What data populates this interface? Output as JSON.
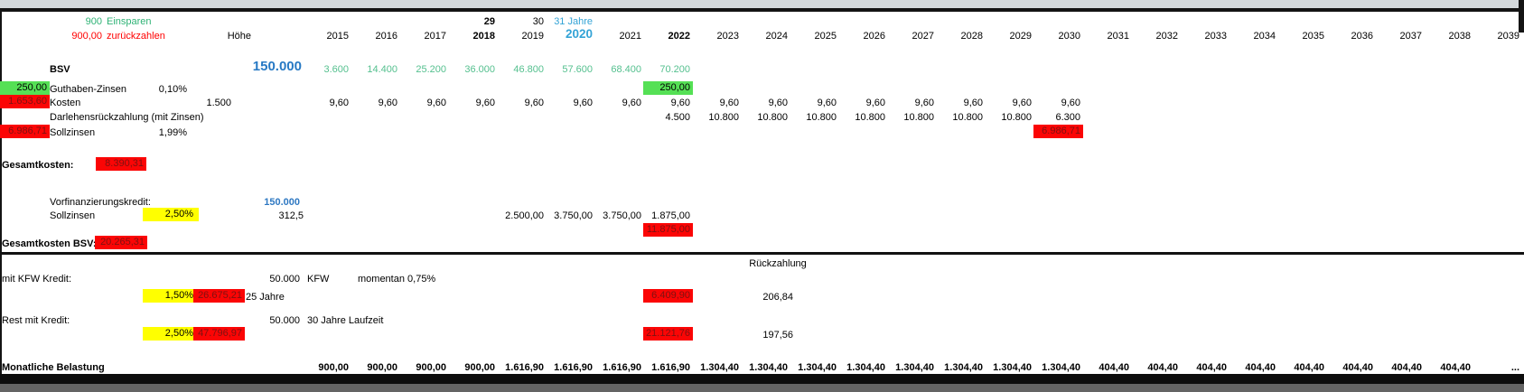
{
  "top": {
    "einsparen_value": "900",
    "einsparen_label": "Einsparen",
    "zurueck_value": "900,00",
    "zurueck_label": "zurückzahlen",
    "hoehe_header": "Höhe",
    "marks": {
      "2018": "29",
      "2019": "30",
      "2020": "31 Jahre"
    },
    "mark_styles": {
      "2018": "b",
      "2020": "blu"
    },
    "years": [
      "2015",
      "2016",
      "2017",
      "2018",
      "2019",
      "2020",
      "2021",
      "2022",
      "2023",
      "2024",
      "2025",
      "2026",
      "2027",
      "2028",
      "2029",
      "2030",
      "2031",
      "2032",
      "2033",
      "2034",
      "2035",
      "2036",
      "2037",
      "2038",
      "2039"
    ],
    "year_styles": {
      "2018": "b",
      "2020": "y2020",
      "2022": "b"
    }
  },
  "rows": {
    "bsv": {
      "label": "BSV",
      "hoehe": "150.000",
      "values": {
        "2015": "3.600",
        "2016": "14.400",
        "2017": "25.200",
        "2018": "36.000",
        "2019": "46.800",
        "2020": "57.600",
        "2021": "68.400",
        "2022": "70.200"
      }
    },
    "guthaben": {
      "left": "250,00",
      "label": "Guthaben-Zinsen",
      "pct": "0,10%",
      "cells": {
        "2022": "250,00"
      }
    },
    "kosten": {
      "left": "1.653,60",
      "label": "Kosten",
      "base": "1.500",
      "values": {
        "2015": "9,60",
        "2016": "9,60",
        "2017": "9,60",
        "2018": "9,60",
        "2019": "9,60",
        "2020": "9,60",
        "2021": "9,60",
        "2022": "9,60",
        "2023": "9,60",
        "2024": "9,60",
        "2025": "9,60",
        "2026": "9,60",
        "2027": "9,60",
        "2028": "9,60",
        "2029": "9,60",
        "2030": "9,60"
      }
    },
    "darlehen": {
      "label": "Darlehensrückzahlung (mit Zinsen)",
      "values": {
        "2022": "4.500",
        "2023": "10.800",
        "2024": "10.800",
        "2025": "10.800",
        "2026": "10.800",
        "2027": "10.800",
        "2028": "10.800",
        "2029": "10.800",
        "2030": "6.300"
      }
    },
    "sollzinsen": {
      "left": "6.986,71",
      "label": "Sollzinsen",
      "pct": "1,99%",
      "cells": {
        "2030": "6.986,71"
      }
    },
    "gesamtkosten": {
      "label": "Gesamtkosten:",
      "total": "8.390,31"
    },
    "vorfin": {
      "label": "Vorfinanzierungskredit:",
      "hoehe": "150.000"
    },
    "sollzinsen2": {
      "label": "Sollzinsen",
      "pct": "2,50%",
      "hoehe": "312,5",
      "values": {
        "2019": "2.500,00",
        "2020": "3.750,00",
        "2021": "3.750,00",
        "2022": "1.875,00"
      },
      "total_cells": {
        "2022": "11.875,00"
      }
    },
    "gesamt_bsv": {
      "label": "Gesamtkosten BSV:",
      "total": "20.265,31"
    },
    "rueckzahlung_header": "Rückzahlung",
    "kfw": {
      "label": "mit KFW Kredit:",
      "amount": "50.000",
      "name": "KFW",
      "note": "momentan 0,75%",
      "pct": "1,50%",
      "total": "26.675,21",
      "term": "25 Jahre",
      "cells": {
        "2022": "6.409,90"
      },
      "monthly": "206,84"
    },
    "rest": {
      "label": "Rest mit Kredit:",
      "amount": "50.000",
      "note": "30 Jahre Laufzeit",
      "pct": "2,50%",
      "total": "47.796,97",
      "cells": {
        "2022": "21.121,76"
      },
      "monthly": "197,56"
    },
    "monat": {
      "label": "Monatliche Belastung",
      "values": {
        "2015": "900,00",
        "2016": "900,00",
        "2017": "900,00",
        "2018": "900,00",
        "2019": "1.616,90",
        "2020": "1.616,90",
        "2021": "1.616,90",
        "2022": "1.616,90",
        "2023": "1.304,40",
        "2024": "1.304,40",
        "2025": "1.304,40",
        "2026": "1.304,40",
        "2027": "1.304,40",
        "2028": "1.304,40",
        "2029": "1.304,40",
        "2030": "1.304,40",
        "2031": "404,40",
        "2032": "404,40",
        "2033": "404,40",
        "2034": "404,40",
        "2035": "404,40",
        "2036": "404,40",
        "2037": "404,40",
        "2038": "404,40",
        "2039": "..."
      },
      "value_styles": {
        "2039": "c"
      }
    }
  },
  "colors": {
    "accent_green": "#2EB275",
    "value_green": "#55C08F",
    "alert_red": "#FF0000",
    "highlight_yellow": "#FFFF00",
    "cell_green_bg": "#55E055",
    "cell_red_bg": "#FB0505",
    "blue_dark": "#2E78C2",
    "blue_light": "#33A3D6"
  }
}
